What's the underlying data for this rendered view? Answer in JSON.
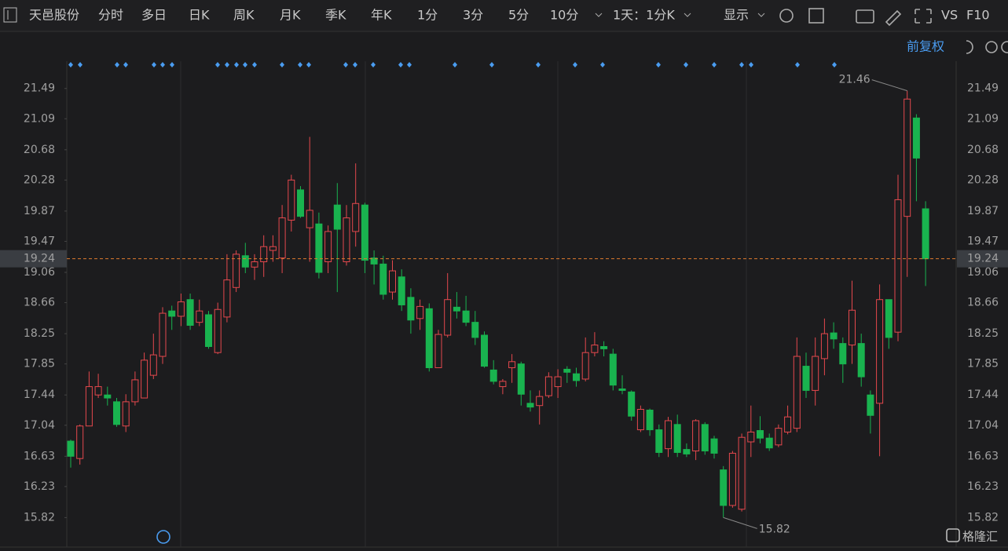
{
  "toolbar": {
    "stock_name": "天邑股份",
    "periods": [
      "分时",
      "多日",
      "日K",
      "周K",
      "月K",
      "季K",
      "年K",
      "1分",
      "3分",
      "5分",
      "10分"
    ],
    "active_period": 2,
    "interval": "1天：1分K",
    "display": "显示",
    "vs": "VS",
    "f10": "F10"
  },
  "adjust": "前复权",
  "watermark": "格隆汇",
  "chart_data": {
    "type": "candlestick",
    "open": [
      16.83,
      16.6,
      17.03,
      17.44,
      17.44,
      17.35,
      17.03,
      17.35,
      17.4,
      17.7,
      17.95,
      18.55,
      18.48,
      18.7,
      18.4,
      18.5,
      18.0,
      18.47,
      18.86,
      19.28,
      19.13,
      19.2,
      19.35,
      19.25,
      19.75,
      20.15,
      19.65,
      19.7,
      19.2,
      19.95,
      19.2,
      19.6,
      19.95,
      19.25,
      19.17,
      18.8,
      19.0,
      18.73,
      18.45,
      18.58,
      17.8,
      18.23,
      18.6,
      18.55,
      18.4,
      18.23,
      17.77,
      17.55,
      17.8,
      17.85,
      17.33,
      17.3,
      17.43,
      17.55,
      17.78,
      17.72,
      17.65,
      18.0,
      18.08,
      17.98,
      17.52,
      17.48,
      16.98,
      17.24,
      16.98,
      16.73,
      17.05,
      16.72,
      16.7,
      17.05,
      16.86,
      16.45,
      15.98,
      15.93,
      16.82,
      16.97,
      16.87,
      16.78,
      16.95,
      17.0,
      17.82,
      17.5,
      17.92,
      18.26,
      18.12,
      18.1,
      18.12,
      17.44,
      17.33,
      18.7,
      18.27,
      19.8,
      21.1,
      19.9
    ],
    "high": [
      16.85,
      17.05,
      17.75,
      17.72,
      17.55,
      17.4,
      17.45,
      17.75,
      18.0,
      18.25,
      18.6,
      18.62,
      18.78,
      18.78,
      18.7,
      18.55,
      18.66,
      19.3,
      19.35,
      19.45,
      19.3,
      19.55,
      19.55,
      19.95,
      20.35,
      20.2,
      20.85,
      19.85,
      19.68,
      20.24,
      19.95,
      20.5,
      19.98,
      19.35,
      19.28,
      19.22,
      19.1,
      18.85,
      18.7,
      18.65,
      18.3,
      19.05,
      18.8,
      18.75,
      18.55,
      18.28,
      17.9,
      17.65,
      17.98,
      17.88,
      17.5,
      17.5,
      17.74,
      17.78,
      17.82,
      17.8,
      18.2,
      18.27,
      18.15,
      18.05,
      17.7,
      17.5,
      17.3,
      17.26,
      17.05,
      17.15,
      17.18,
      16.8,
      17.12,
      17.08,
      16.9,
      16.5,
      16.7,
      16.93,
      17.3,
      17.16,
      16.93,
      17.05,
      17.3,
      18.2,
      18.0,
      18.2,
      18.45,
      18.4,
      18.2,
      18.95,
      18.25,
      17.5,
      18.9,
      18.7,
      20.35,
      21.46,
      21.15,
      20.0
    ],
    "low": [
      16.48,
      16.52,
      17.03,
      17.4,
      17.3,
      17.02,
      16.95,
      17.3,
      17.4,
      17.65,
      17.85,
      18.3,
      18.35,
      18.3,
      18.35,
      18.05,
      17.98,
      18.4,
      18.8,
      19.05,
      18.96,
      19.0,
      19.2,
      19.05,
      19.6,
      19.78,
      19.2,
      18.98,
      19.05,
      18.8,
      19.15,
      19.4,
      19.05,
      18.9,
      18.7,
      18.7,
      18.55,
      18.25,
      18.3,
      17.75,
      17.8,
      18.2,
      18.45,
      18.35,
      18.1,
      17.8,
      17.58,
      17.45,
      17.6,
      17.3,
      17.22,
      17.05,
      17.4,
      17.4,
      17.6,
      17.55,
      17.62,
      17.95,
      17.95,
      17.5,
      17.45,
      17.1,
      16.95,
      16.9,
      16.62,
      16.62,
      16.62,
      16.62,
      16.58,
      16.65,
      16.6,
      15.82,
      15.95,
      15.9,
      16.62,
      16.8,
      16.7,
      16.75,
      16.92,
      16.95,
      17.4,
      17.3,
      17.7,
      18.05,
      17.6,
      17.85,
      17.55,
      16.93,
      16.63,
      18.05,
      18.15,
      19.0,
      20.0,
      18.88
    ],
    "close": [
      16.63,
      17.03,
      17.55,
      17.55,
      17.4,
      17.05,
      17.35,
      17.64,
      17.9,
      17.97,
      18.52,
      18.48,
      18.67,
      18.36,
      18.55,
      18.08,
      18.57,
      18.96,
      19.3,
      19.13,
      19.2,
      19.4,
      19.4,
      19.78,
      20.28,
      19.8,
      19.88,
      19.06,
      19.6,
      19.63,
      19.78,
      19.97,
      19.22,
      19.17,
      18.77,
      19.08,
      18.63,
      18.43,
      18.61,
      17.8,
      18.24,
      18.7,
      18.55,
      18.4,
      18.2,
      17.82,
      17.62,
      17.62,
      17.88,
      17.45,
      17.28,
      17.42,
      17.68,
      17.68,
      17.74,
      17.63,
      18.0,
      18.1,
      18.05,
      17.57,
      17.5,
      17.16,
      17.25,
      16.98,
      16.68,
      17.1,
      16.68,
      16.66,
      17.1,
      16.7,
      16.67,
      15.98,
      16.67,
      16.88,
      16.95,
      16.87,
      16.74,
      17.0,
      17.15,
      17.95,
      17.5,
      17.95,
      18.25,
      18.18,
      17.85,
      18.56,
      17.68,
      17.17,
      18.7,
      18.2,
      20.02,
      21.35,
      20.57,
      19.24
    ],
    "up_color": "#e5484d",
    "down_color": "#19b34f",
    "ylim": [
      15.43,
      21.85
    ],
    "yticks": [
      21.49,
      21.09,
      20.68,
      20.28,
      19.87,
      19.47,
      19.06,
      18.66,
      18.25,
      17.85,
      17.44,
      17.04,
      16.63,
      16.23,
      15.82
    ],
    "last_price": 19.24,
    "last_price_color": "#e07b2e",
    "high_annotation": 21.46,
    "low_annotation": 15.82,
    "grid": true
  }
}
